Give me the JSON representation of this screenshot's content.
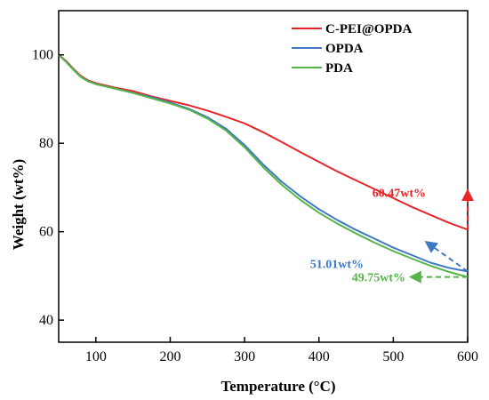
{
  "chart_data": {
    "type": "line",
    "xlabel": "Temperature (°C)",
    "ylabel": "Weight (wt%)",
    "xlim": [
      50,
      600
    ],
    "ylim": [
      35,
      110
    ],
    "x_ticks": [
      100,
      200,
      300,
      400,
      500,
      600
    ],
    "y_ticks": [
      40,
      60,
      80,
      100
    ],
    "grid": false,
    "legend_position": "top-right",
    "series": [
      {
        "name": "C-PEI@OPDA",
        "color": "#e8262a",
        "x": [
          50,
          60,
          70,
          80,
          90,
          100,
          125,
          150,
          175,
          200,
          225,
          250,
          275,
          300,
          325,
          350,
          375,
          400,
          425,
          450,
          475,
          500,
          525,
          550,
          575,
          600
        ],
        "y": [
          100,
          98.6,
          96.8,
          95.2,
          94.2,
          93.6,
          92.6,
          91.8,
          90.6,
          89.6,
          88.6,
          87.4,
          86.0,
          84.5,
          82.5,
          80.3,
          78.0,
          75.8,
          73.6,
          71.6,
          69.6,
          67.6,
          65.6,
          63.8,
          62.0,
          60.47
        ]
      },
      {
        "name": "OPDA",
        "color": "#3f78c4",
        "x": [
          50,
          60,
          70,
          80,
          90,
          100,
          125,
          150,
          175,
          200,
          225,
          250,
          275,
          300,
          325,
          350,
          375,
          400,
          425,
          450,
          475,
          500,
          525,
          550,
          575,
          600
        ],
        "y": [
          100,
          98.4,
          96.6,
          95.0,
          94.0,
          93.4,
          92.4,
          91.4,
          90.4,
          89.2,
          87.8,
          85.9,
          83.3,
          79.6,
          75.2,
          71.3,
          68.0,
          65.1,
          62.6,
          60.4,
          58.4,
          56.4,
          54.7,
          53.0,
          51.8,
          51.01
        ]
      },
      {
        "name": "PDA",
        "color": "#56b448",
        "x": [
          50,
          60,
          70,
          80,
          90,
          100,
          125,
          150,
          175,
          200,
          225,
          250,
          275,
          300,
          325,
          350,
          375,
          400,
          425,
          450,
          475,
          500,
          525,
          550,
          575,
          600
        ],
        "y": [
          100,
          98.4,
          96.6,
          95.0,
          94.0,
          93.4,
          92.4,
          91.4,
          90.2,
          89.0,
          87.6,
          85.6,
          82.9,
          79.1,
          74.6,
          70.6,
          67.2,
          64.3,
          61.8,
          59.6,
          57.5,
          55.6,
          53.9,
          52.3,
          50.9,
          49.75
        ]
      }
    ],
    "annotations": [
      {
        "text": "60.47wt%",
        "color": "#e8262a",
        "at_x": 600,
        "at_y": 60.47
      },
      {
        "text": "51.01wt%",
        "color": "#3f78c4",
        "at_x": 600,
        "at_y": 51.01
      },
      {
        "text": "49.75wt%",
        "color": "#56b448",
        "at_x": 600,
        "at_y": 49.75
      }
    ]
  }
}
